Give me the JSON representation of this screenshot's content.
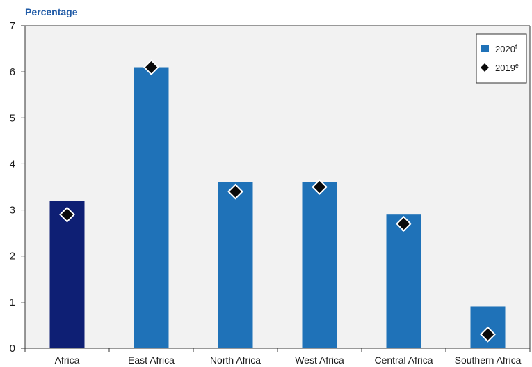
{
  "chart_data": {
    "type": "bar",
    "ylabel": "Percentage",
    "ylim": [
      0,
      7
    ],
    "yticks": [
      "0",
      "1",
      "2",
      "3",
      "4",
      "5",
      "6",
      "7"
    ],
    "categories": [
      "Africa",
      "East Africa",
      "North Africa",
      "West Africa",
      "Central Africa",
      "Southern Africa"
    ],
    "series": [
      {
        "name": "2020",
        "superscript": "f",
        "type": "bar",
        "values": [
          3.2,
          6.1,
          3.6,
          3.6,
          2.9,
          0.9
        ]
      },
      {
        "name": "2019",
        "superscript": "e",
        "type": "marker",
        "values": [
          2.9,
          6.1,
          3.4,
          3.5,
          2.7,
          0.3
        ]
      }
    ],
    "legend_position": "top-right",
    "grid": false,
    "colors": {
      "background": "#f2f2f2",
      "bar": "#1f72b8",
      "bar_highlight": "#0e1f74",
      "marker": "#0a0a0a",
      "marker_outline": "#ffffff",
      "ylabel": "#1f5aa6"
    }
  }
}
